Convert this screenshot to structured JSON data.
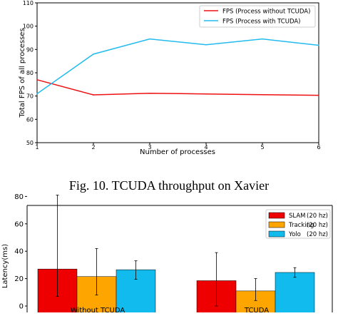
{
  "chart_data": [
    {
      "type": "line",
      "xlabel": "Number of processes",
      "ylabel": "Total FPS of all processes",
      "xlim": [
        1,
        6
      ],
      "ylim": [
        50,
        110
      ],
      "x_ticks": [
        "1",
        "2",
        "3",
        "4",
        "5",
        "6"
      ],
      "y_ticks": [
        "50",
        "60",
        "70",
        "80",
        "90",
        "100",
        "110"
      ],
      "grid": false,
      "legend_position": "top-right",
      "x": [
        1,
        2,
        3,
        4,
        5,
        6
      ],
      "series": [
        {
          "name": "FPS (Process without TCUDA)",
          "color": "#ee1111",
          "values": [
            77,
            70.5,
            71.2,
            70.9,
            70.6,
            70.3
          ]
        },
        {
          "name": "FPS (Process with TCUDA)",
          "color": "#22bbee",
          "values": [
            71,
            88,
            94.5,
            92,
            94.5,
            91.8
          ]
        }
      ]
    },
    {
      "type": "bar",
      "ylabel": "Latency(ms)",
      "ylim": [
        0,
        90
      ],
      "y_ticks": [
        "0",
        "20",
        "40",
        "60",
        "80"
      ],
      "grid": false,
      "legend_position": "top-right",
      "categories": [
        "Without TCUDA",
        "TCUDA"
      ],
      "series": [
        {
          "name": "SLAM",
          "rate": "(20 hz)",
          "color": "#ee0000",
          "values": [
            27,
            18.5
          ],
          "err_low": [
            7,
            0
          ],
          "err_high": [
            81,
            39
          ]
        },
        {
          "name": "Tracking",
          "rate": "(20 hz)",
          "color": "#ffa500",
          "values": [
            21.5,
            11
          ],
          "err_low": [
            8,
            4
          ],
          "err_high": [
            42,
            20
          ]
        },
        {
          "name": "Yolo",
          "rate": "(20 hz)",
          "color": "#11bbee",
          "values": [
            26.5,
            24.5
          ],
          "err_low": [
            19.5,
            21
          ],
          "err_high": [
            33,
            28
          ]
        }
      ]
    }
  ],
  "caption": "Fig. 10.  TCUDA throughput on Xavier"
}
